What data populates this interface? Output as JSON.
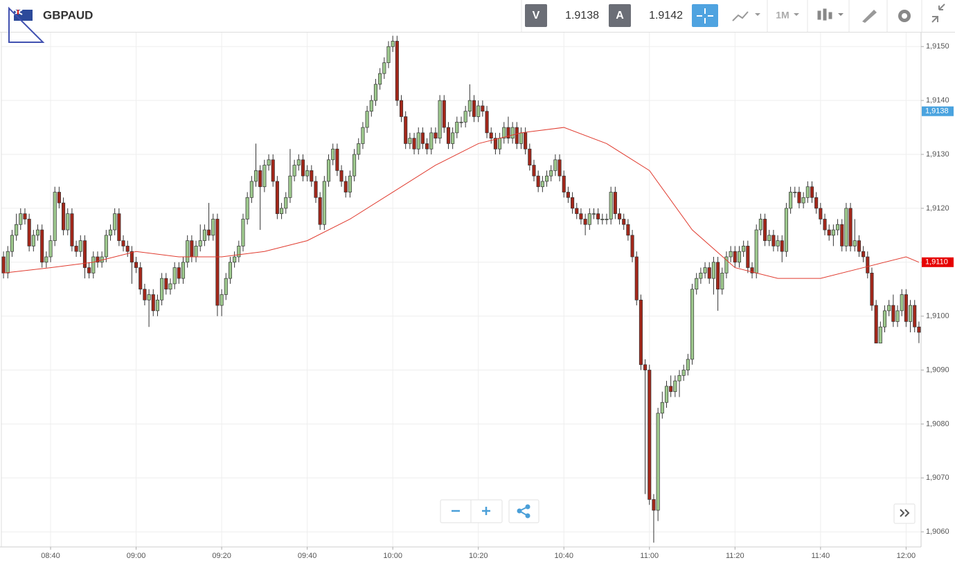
{
  "header": {
    "symbol": "GBPAUD",
    "sell": {
      "label": "V",
      "price": 1.9138
    },
    "buy": {
      "label": "A",
      "price": 1.9142
    },
    "timeframe": "1M"
  },
  "chart_data": {
    "type": "candlestick",
    "x": [
      "08:29",
      "08:30",
      "08:31",
      "08:32",
      "08:33",
      "08:34",
      "08:35",
      "08:36",
      "08:37",
      "08:38",
      "08:39",
      "08:40",
      "08:41",
      "08:42",
      "08:43",
      "08:44",
      "08:45",
      "08:46",
      "08:47",
      "08:48",
      "08:49",
      "08:50",
      "08:51",
      "08:52",
      "08:53",
      "08:54",
      "08:55",
      "08:56",
      "08:57",
      "08:58",
      "08:59",
      "09:00",
      "09:01",
      "09:02",
      "09:03",
      "09:04",
      "09:05",
      "09:06",
      "09:07",
      "09:08",
      "09:09",
      "09:10",
      "09:11",
      "09:12",
      "09:13",
      "09:14",
      "09:15",
      "09:16",
      "09:17",
      "09:18",
      "09:19",
      "09:20",
      "09:21",
      "09:22",
      "09:23",
      "09:24",
      "09:25",
      "09:26",
      "09:27",
      "09:28",
      "09:29",
      "09:30",
      "09:31",
      "09:32",
      "09:33",
      "09:34",
      "09:35",
      "09:36",
      "09:37",
      "09:38",
      "09:39",
      "09:40",
      "09:41",
      "09:42",
      "09:43",
      "09:44",
      "09:45",
      "09:46",
      "09:47",
      "09:48",
      "09:49",
      "09:50",
      "09:51",
      "09:52",
      "09:53",
      "09:54",
      "09:55",
      "09:56",
      "09:57",
      "09:58",
      "09:59",
      "10:00",
      "10:01",
      "10:02",
      "10:03",
      "10:04",
      "10:05",
      "10:06",
      "10:07",
      "10:08",
      "10:09",
      "10:10",
      "10:11",
      "10:12",
      "10:13",
      "10:14",
      "10:15",
      "10:16",
      "10:17",
      "10:18",
      "10:19",
      "10:20",
      "10:21",
      "10:22",
      "10:23",
      "10:24",
      "10:25",
      "10:26",
      "10:27",
      "10:28",
      "10:29",
      "10:30",
      "10:31",
      "10:32",
      "10:33",
      "10:34",
      "10:35",
      "10:36",
      "10:37",
      "10:38",
      "10:39",
      "10:40",
      "10:41",
      "10:42",
      "10:43",
      "10:44",
      "10:45",
      "10:46",
      "10:47",
      "10:48",
      "10:49",
      "10:50",
      "10:51",
      "10:52",
      "10:53",
      "10:54",
      "10:55",
      "10:56",
      "10:57",
      "10:58",
      "10:59",
      "11:00",
      "11:01",
      "11:02",
      "11:03",
      "11:04",
      "11:05",
      "11:06",
      "11:07",
      "11:08",
      "11:09",
      "11:10",
      "11:11",
      "11:12",
      "11:13",
      "11:14",
      "11:15",
      "11:16",
      "11:17",
      "11:18",
      "11:19",
      "11:20",
      "11:21",
      "11:22",
      "11:23",
      "11:24",
      "11:25",
      "11:26",
      "11:27",
      "11:28",
      "11:29",
      "11:30",
      "11:31",
      "11:32",
      "11:33",
      "11:34",
      "11:35",
      "11:36",
      "11:37",
      "11:38",
      "11:39",
      "11:40",
      "11:41",
      "11:42",
      "11:43",
      "11:44",
      "11:45",
      "11:46",
      "11:47",
      "11:48",
      "11:49",
      "11:50",
      "11:51",
      "11:52",
      "11:53",
      "11:54",
      "11:55",
      "11:56",
      "11:57",
      "11:58",
      "11:59",
      "12:00",
      "12:01",
      "12:02",
      "12:03"
    ],
    "open": [
      1.9111,
      1.9108,
      1.9112,
      1.9115,
      1.9117,
      1.9119,
      1.9118,
      1.9113,
      1.9115,
      1.9116,
      1.911,
      1.9111,
      1.9114,
      1.9123,
      1.9121,
      1.9116,
      1.9119,
      1.9113,
      1.9112,
      1.9114,
      1.9109,
      1.9108,
      1.9111,
      1.911,
      1.9111,
      1.9115,
      1.9116,
      1.9119,
      1.9114,
      1.9113,
      1.9112,
      1.911,
      1.9109,
      1.9105,
      1.9103,
      1.9104,
      1.9101,
      1.9103,
      1.9107,
      1.9105,
      1.9106,
      1.9109,
      1.9107,
      1.911,
      1.9114,
      1.9111,
      1.9113,
      1.9114,
      1.9116,
      1.9115,
      1.9118,
      1.9102,
      1.9104,
      1.9107,
      1.911,
      1.9111,
      1.9113,
      1.9118,
      1.9122,
      1.9125,
      1.9127,
      1.9124,
      1.9128,
      1.9129,
      1.9125,
      1.9119,
      1.912,
      1.9122,
      1.9126,
      1.9128,
      1.9129,
      1.9126,
      1.9127,
      1.9125,
      1.9122,
      1.9117,
      1.9125,
      1.9129,
      1.9131,
      1.9127,
      1.9125,
      1.9123,
      1.9126,
      1.913,
      1.9132,
      1.9135,
      1.9138,
      1.914,
      1.9143,
      1.9145,
      1.9147,
      1.915,
      1.9151,
      1.914,
      1.9137,
      1.9132,
      1.9133,
      1.9131,
      1.9134,
      1.9132,
      1.9131,
      1.9134,
      1.9133,
      1.914,
      1.9135,
      1.9132,
      1.9134,
      1.9136,
      1.9136,
      1.9138,
      1.914,
      1.9137,
      1.9139,
      1.9138,
      1.9134,
      1.9133,
      1.9131,
      1.9133,
      1.9135,
      1.9133,
      1.9135,
      1.9132,
      1.9134,
      1.9131,
      1.9128,
      1.9126,
      1.9124,
      1.9125,
      1.9126,
      1.9127,
      1.9129,
      1.9126,
      1.9123,
      1.9122,
      1.912,
      1.9119,
      1.9118,
      1.9117,
      1.9119,
      1.9119,
      1.9118,
      1.9118,
      1.9118,
      1.9123,
      1.9119,
      1.9118,
      1.9117,
      1.9115,
      1.9111,
      1.9103,
      1.9091,
      1.909,
      1.9066,
      1.9064,
      1.9082,
      1.9084,
      1.9087,
      1.9086,
      1.9088,
      1.9089,
      1.909,
      1.9092,
      1.9105,
      1.9107,
      1.9108,
      1.9109,
      1.9107,
      1.911,
      1.9105,
      1.9108,
      1.9111,
      1.9112,
      1.911,
      1.9112,
      1.9113,
      1.9109,
      1.9108,
      1.9116,
      1.9118,
      1.9114,
      1.9115,
      1.9113,
      1.9114,
      1.9112,
      1.912,
      1.9123,
      1.9123,
      1.9121,
      1.9122,
      1.9124,
      1.9122,
      1.912,
      1.9118,
      1.9116,
      1.9115,
      1.9116,
      1.9117,
      1.9113,
      1.912,
      1.9113,
      1.9114,
      1.9112,
      1.9111,
      1.9108,
      1.9102,
      1.9095,
      1.9098,
      1.9101,
      1.9102,
      1.9099,
      1.9101,
      1.9104,
      1.9099,
      1.9102,
      1.9098
    ],
    "high": [
      1.9112,
      1.9113,
      1.9116,
      1.9119,
      1.912,
      1.912,
      1.9119,
      1.9116,
      1.9117,
      1.9117,
      1.9112,
      1.9115,
      1.9124,
      1.9124,
      1.9122,
      1.912,
      1.912,
      1.9114,
      1.9115,
      1.9115,
      1.911,
      1.9112,
      1.9112,
      1.9112,
      1.9116,
      1.9117,
      1.912,
      1.912,
      1.9115,
      1.9114,
      1.9113,
      1.9111,
      1.911,
      1.9106,
      1.9105,
      1.9105,
      1.9104,
      1.9108,
      1.9108,
      1.9107,
      1.911,
      1.911,
      1.9111,
      1.9115,
      1.9115,
      1.9114,
      1.9117,
      1.9117,
      1.9121,
      1.9119,
      1.9119,
      1.9105,
      1.9108,
      1.9111,
      1.9112,
      1.9114,
      1.9119,
      1.9123,
      1.9126,
      1.9132,
      1.9128,
      1.9129,
      1.913,
      1.913,
      1.9126,
      1.9121,
      1.9123,
      1.9131,
      1.9129,
      1.913,
      1.913,
      1.9128,
      1.9128,
      1.9126,
      1.9123,
      1.9126,
      1.913,
      1.9132,
      1.9132,
      1.9128,
      1.9126,
      1.9127,
      1.9131,
      1.9133,
      1.9136,
      1.9139,
      1.9141,
      1.9144,
      1.9146,
      1.9148,
      1.9151,
      1.9152,
      1.9152,
      1.9141,
      1.9138,
      1.9134,
      1.9134,
      1.9135,
      1.9135,
      1.9133,
      1.9135,
      1.9135,
      1.9141,
      1.9141,
      1.9136,
      1.9135,
      1.9137,
      1.9137,
      1.9139,
      1.9143,
      1.9141,
      1.914,
      1.914,
      1.9139,
      1.9135,
      1.9134,
      1.9134,
      1.9136,
      1.9137,
      1.9136,
      1.9136,
      1.9135,
      1.9135,
      1.9132,
      1.9129,
      1.9127,
      1.9126,
      1.9127,
      1.9128,
      1.913,
      1.913,
      1.9127,
      1.9124,
      1.9123,
      1.9121,
      1.912,
      1.9119,
      1.912,
      1.912,
      1.912,
      1.9119,
      1.9119,
      1.9124,
      1.9124,
      1.912,
      1.9119,
      1.9118,
      1.9116,
      1.9112,
      1.9104,
      1.9092,
      1.9091,
      1.9067,
      1.9083,
      1.9086,
      1.9088,
      1.9089,
      1.9089,
      1.909,
      1.9091,
      1.9093,
      1.9106,
      1.9108,
      1.9109,
      1.911,
      1.911,
      1.9111,
      1.9111,
      1.9109,
      1.9112,
      1.9113,
      1.9113,
      1.9113,
      1.9114,
      1.9114,
      1.911,
      1.9117,
      1.9119,
      1.9119,
      1.9116,
      1.9116,
      1.9115,
      1.9115,
      1.9121,
      1.9124,
      1.9124,
      1.9124,
      1.9123,
      1.9125,
      1.9125,
      1.9123,
      1.9121,
      1.9119,
      1.9117,
      1.9117,
      1.9118,
      1.9118,
      1.9121,
      1.9121,
      1.9118,
      1.9115,
      1.9113,
      1.9112,
      1.9109,
      1.9103,
      1.9099,
      1.9102,
      1.9103,
      1.9104,
      1.9102,
      1.9105,
      1.9105,
      1.9103,
      1.9103,
      1.9099
    ],
    "low": [
      1.9107,
      1.9107,
      1.9111,
      1.9114,
      1.9116,
      1.9117,
      1.9112,
      1.9112,
      1.9114,
      1.9109,
      1.9109,
      1.911,
      1.9113,
      1.912,
      1.9115,
      1.9115,
      1.9112,
      1.9111,
      1.9111,
      1.9107,
      1.9107,
      1.9107,
      1.9109,
      1.9109,
      1.911,
      1.9114,
      1.9115,
      1.9113,
      1.9112,
      1.9111,
      1.9106,
      1.9108,
      1.9104,
      1.9102,
      1.9098,
      1.91,
      1.91,
      1.9102,
      1.9104,
      1.9104,
      1.9105,
      1.9106,
      1.9106,
      1.9109,
      1.911,
      1.911,
      1.9112,
      1.9113,
      1.9114,
      1.9114,
      1.91,
      1.91,
      1.9103,
      1.9106,
      1.9109,
      1.911,
      1.9112,
      1.9117,
      1.9121,
      1.9124,
      1.9116,
      1.9123,
      1.9127,
      1.9124,
      1.9118,
      1.9118,
      1.9119,
      1.9121,
      1.9125,
      1.9127,
      1.9125,
      1.9125,
      1.9124,
      1.9121,
      1.9116,
      1.9116,
      1.9124,
      1.9128,
      1.9126,
      1.9124,
      1.9122,
      1.9122,
      1.9125,
      1.9129,
      1.9131,
      1.9134,
      1.9137,
      1.9139,
      1.9142,
      1.9144,
      1.9146,
      1.9149,
      1.9139,
      1.9136,
      1.9131,
      1.9131,
      1.913,
      1.913,
      1.9131,
      1.913,
      1.913,
      1.9132,
      1.9132,
      1.9134,
      1.9131,
      1.9131,
      1.9133,
      1.9135,
      1.9135,
      1.9137,
      1.9136,
      1.9136,
      1.9137,
      1.9133,
      1.9132,
      1.913,
      1.913,
      1.9132,
      1.9132,
      1.9132,
      1.9131,
      1.9131,
      1.913,
      1.9127,
      1.9125,
      1.9123,
      1.9123,
      1.9124,
      1.9125,
      1.9126,
      1.9125,
      1.9122,
      1.9121,
      1.9119,
      1.9118,
      1.9117,
      1.9115,
      1.9116,
      1.9118,
      1.9117,
      1.9117,
      1.9117,
      1.9117,
      1.9118,
      1.9117,
      1.9116,
      1.9114,
      1.911,
      1.9102,
      1.909,
      1.9067,
      1.9065,
      1.9058,
      1.9062,
      1.9081,
      1.9083,
      1.9085,
      1.9085,
      1.9085,
      1.9088,
      1.9089,
      1.9091,
      1.9104,
      1.9106,
      1.9107,
      1.9106,
      1.9104,
      1.9101,
      1.9104,
      1.9107,
      1.911,
      1.9109,
      1.9109,
      1.9111,
      1.9108,
      1.9107,
      1.9107,
      1.9115,
      1.9113,
      1.9113,
      1.9112,
      1.9112,
      1.911,
      1.9111,
      1.9119,
      1.9122,
      1.912,
      1.912,
      1.9121,
      1.9121,
      1.9119,
      1.9117,
      1.9115,
      1.9114,
      1.9113,
      1.9115,
      1.9112,
      1.9112,
      1.9112,
      1.9112,
      1.9111,
      1.911,
      1.9107,
      1.9101,
      1.9095,
      1.9095,
      1.9097,
      1.91,
      1.9098,
      1.9098,
      1.91,
      1.9098,
      1.9097,
      1.9097,
      1.9095
    ],
    "close": [
      1.9108,
      1.9112,
      1.9115,
      1.9117,
      1.9119,
      1.9118,
      1.9113,
      1.9115,
      1.9116,
      1.911,
      1.9111,
      1.9114,
      1.9123,
      1.9121,
      1.9116,
      1.9119,
      1.9113,
      1.9112,
      1.9114,
      1.9109,
      1.9108,
      1.9111,
      1.911,
      1.9111,
      1.9115,
      1.9116,
      1.9119,
      1.9114,
      1.9113,
      1.9112,
      1.911,
      1.9109,
      1.9105,
      1.9103,
      1.9104,
      1.9101,
      1.9103,
      1.9107,
      1.9105,
      1.9106,
      1.9109,
      1.9107,
      1.911,
      1.9114,
      1.9111,
      1.9113,
      1.9114,
      1.9116,
      1.9115,
      1.9118,
      1.9102,
      1.9104,
      1.9107,
      1.911,
      1.9111,
      1.9113,
      1.9118,
      1.9122,
      1.9125,
      1.9127,
      1.9124,
      1.9128,
      1.9129,
      1.9125,
      1.9119,
      1.912,
      1.9122,
      1.9126,
      1.9128,
      1.9129,
      1.9126,
      1.9127,
      1.9125,
      1.9122,
      1.9117,
      1.9125,
      1.9129,
      1.9131,
      1.9127,
      1.9125,
      1.9123,
      1.9126,
      1.913,
      1.9132,
      1.9135,
      1.9138,
      1.914,
      1.9143,
      1.9145,
      1.9147,
      1.915,
      1.9151,
      1.914,
      1.9137,
      1.9132,
      1.9133,
      1.9131,
      1.9134,
      1.9132,
      1.9131,
      1.9134,
      1.9133,
      1.914,
      1.9135,
      1.9132,
      1.9134,
      1.9136,
      1.9136,
      1.9138,
      1.914,
      1.9137,
      1.9139,
      1.9138,
      1.9134,
      1.9133,
      1.9131,
      1.9133,
      1.9135,
      1.9133,
      1.9135,
      1.9132,
      1.9134,
      1.9131,
      1.9128,
      1.9126,
      1.9124,
      1.9125,
      1.9126,
      1.9127,
      1.9129,
      1.9126,
      1.9123,
      1.9122,
      1.912,
      1.9119,
      1.9118,
      1.9117,
      1.9119,
      1.9119,
      1.9118,
      1.9118,
      1.9118,
      1.9123,
      1.9119,
      1.9118,
      1.9117,
      1.9115,
      1.9111,
      1.9103,
      1.9091,
      1.909,
      1.9066,
      1.9064,
      1.9082,
      1.9084,
      1.9087,
      1.9086,
      1.9088,
      1.9089,
      1.909,
      1.9092,
      1.9105,
      1.9107,
      1.9108,
      1.9109,
      1.9107,
      1.911,
      1.9105,
      1.9108,
      1.9111,
      1.9112,
      1.911,
      1.9112,
      1.9113,
      1.9109,
      1.9108,
      1.9116,
      1.9118,
      1.9114,
      1.9115,
      1.9113,
      1.9114,
      1.9112,
      1.912,
      1.9123,
      1.9123,
      1.9121,
      1.9122,
      1.9124,
      1.9122,
      1.912,
      1.9118,
      1.9116,
      1.9115,
      1.9116,
      1.9117,
      1.9113,
      1.912,
      1.9113,
      1.9114,
      1.9112,
      1.9111,
      1.9108,
      1.9102,
      1.9095,
      1.9098,
      1.9101,
      1.9102,
      1.9099,
      1.9101,
      1.9104,
      1.9099,
      1.9102,
      1.9098,
      1.9097
    ],
    "up_color": "#9dc88d",
    "down_color": "#a3271a",
    "overlay": {
      "type": "line",
      "color": "#e03a2e",
      "x": [
        "08:29",
        "08:40",
        "08:50",
        "09:00",
        "09:10",
        "09:20",
        "09:30",
        "09:40",
        "09:50",
        "10:00",
        "10:10",
        "10:20",
        "10:30",
        "10:40",
        "10:50",
        "11:00",
        "11:10",
        "11:20",
        "11:30",
        "11:40",
        "11:50",
        "12:00",
        "12:03"
      ],
      "values": [
        1.9108,
        1.9109,
        1.911,
        1.9112,
        1.9111,
        1.9111,
        1.9112,
        1.9114,
        1.9118,
        1.9123,
        1.9128,
        1.9132,
        1.9134,
        1.9135,
        1.9132,
        1.9127,
        1.9116,
        1.9109,
        1.9107,
        1.9107,
        1.9109,
        1.9111,
        1.911
      ]
    },
    "ylim": [
      1.90572,
      1.91526
    ],
    "yticks": [
      {
        "value": 1.906,
        "label": "1,9060"
      },
      {
        "value": 1.907,
        "label": "1,9070"
      },
      {
        "value": 1.908,
        "label": "1,9080"
      },
      {
        "value": 1.909,
        "label": "1,9090"
      },
      {
        "value": 1.91,
        "label": "1,9100"
      },
      {
        "value": 1.911,
        "label": "1,9110"
      },
      {
        "value": 1.912,
        "label": "1,9120"
      },
      {
        "value": 1.913,
        "label": "1,9130"
      },
      {
        "value": 1.914,
        "label": "1,9140"
      },
      {
        "value": 1.915,
        "label": "1,9150"
      }
    ],
    "xticks": [
      "08:40",
      "09:00",
      "09:20",
      "09:40",
      "10:00",
      "10:20",
      "10:40",
      "11:00",
      "11:20",
      "11:40",
      "12:00"
    ],
    "price_markers": [
      {
        "value": 1.9138,
        "label": "1,9138",
        "color": "#4aa3df"
      },
      {
        "value": 1.911,
        "label": "1,9110",
        "color": "#e60000"
      }
    ],
    "grid": true
  }
}
